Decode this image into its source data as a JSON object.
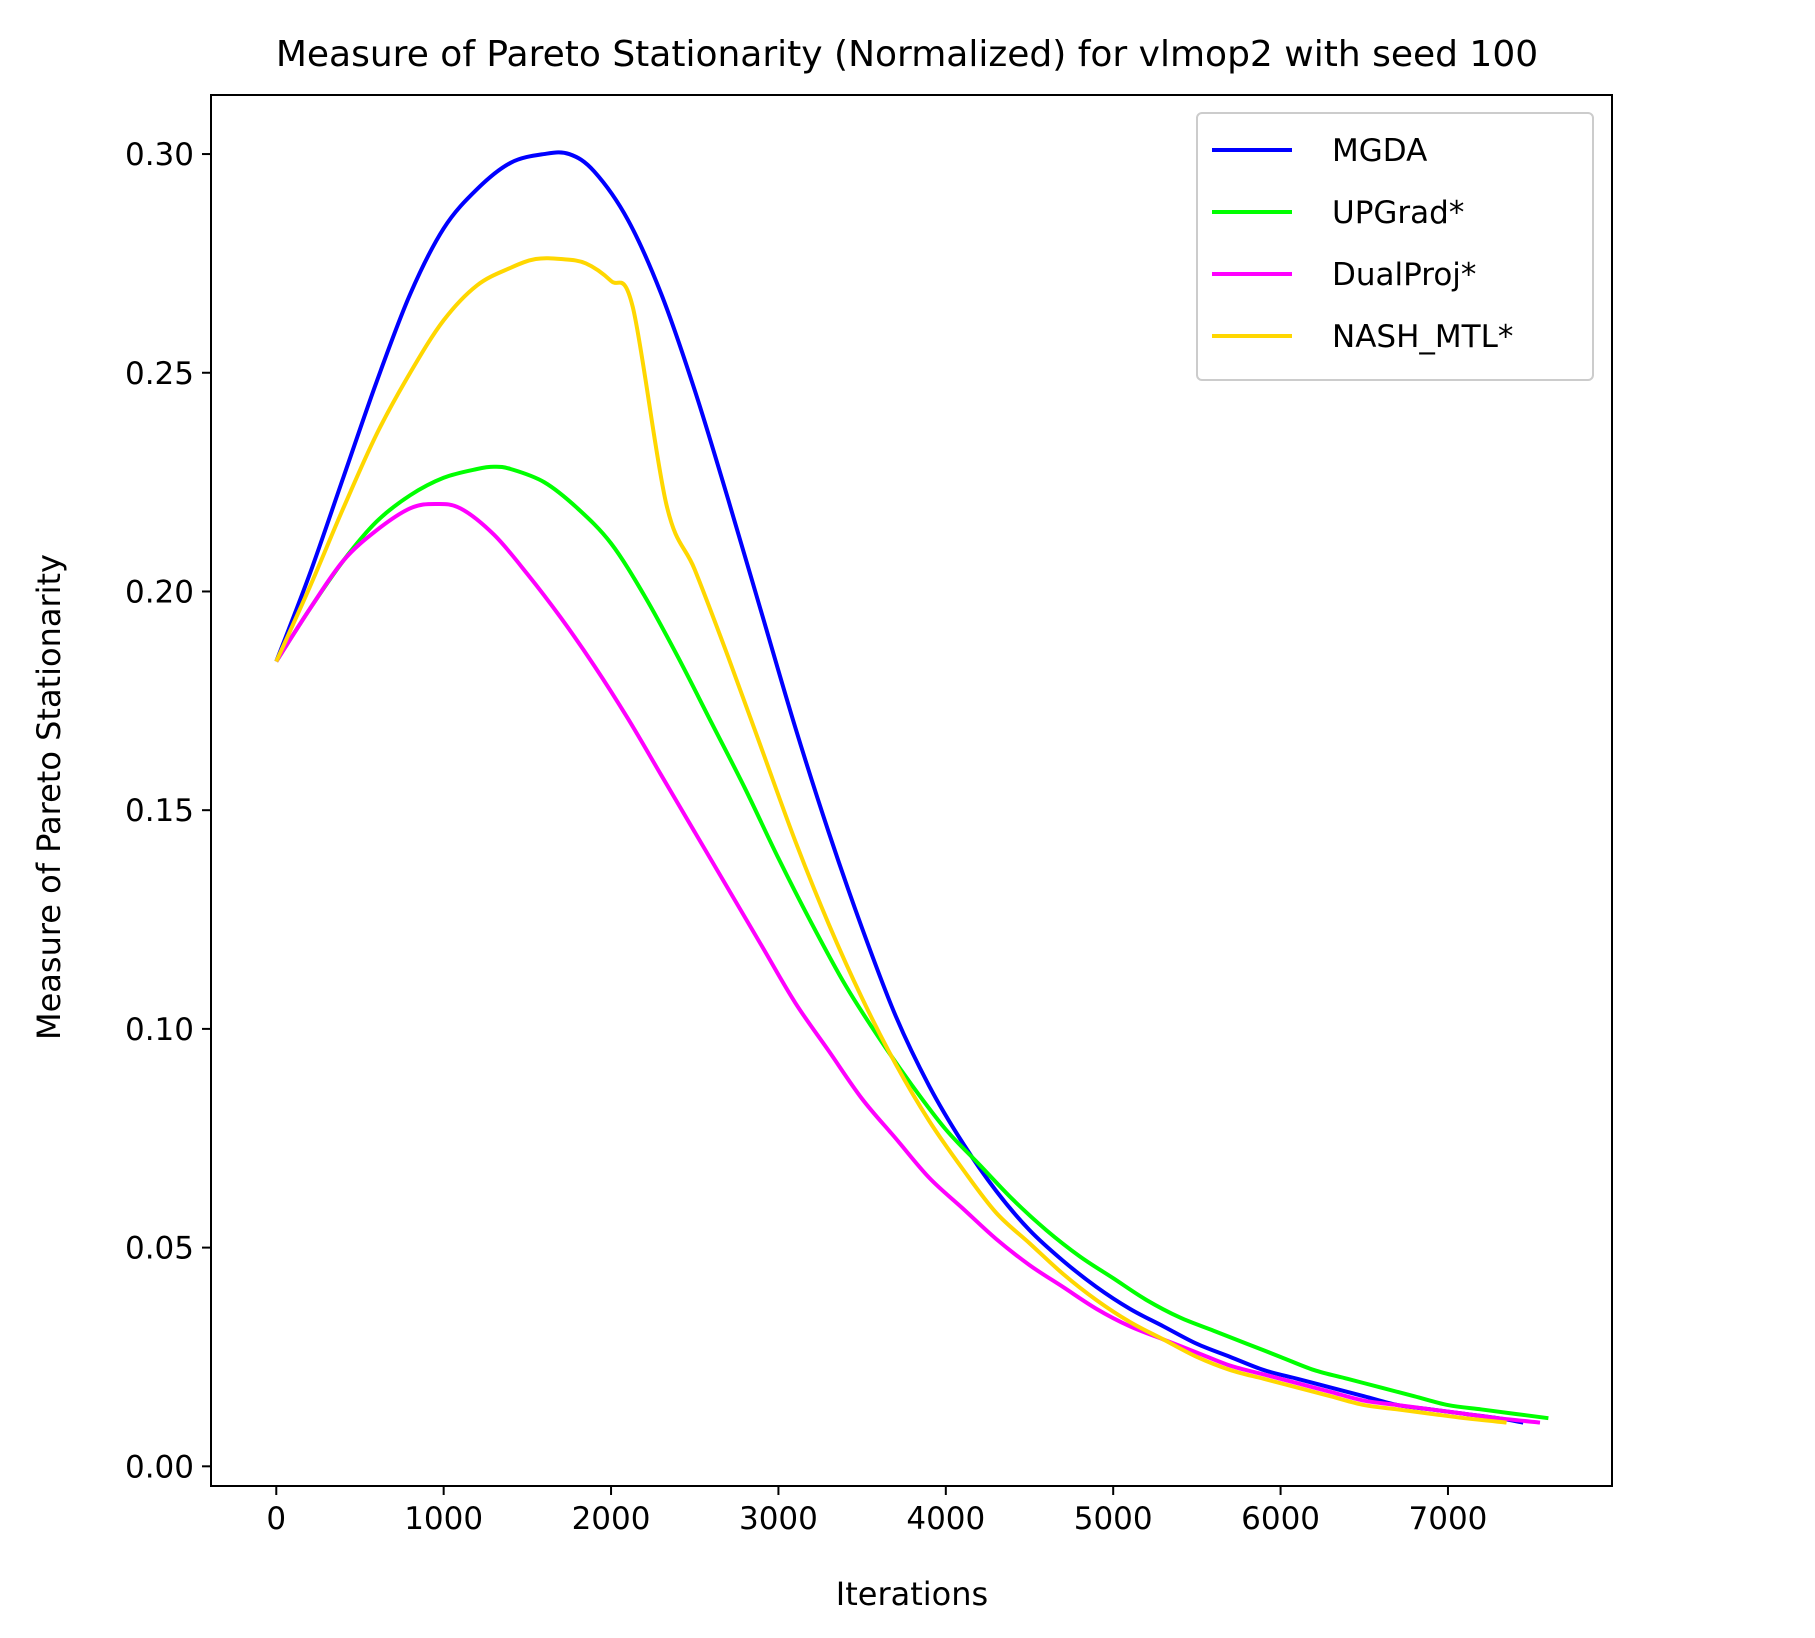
{
  "chart_data": {
    "type": "line",
    "title": "Measure of Pareto Stationarity (Normalized) for vlmop2 with seed 100",
    "xlabel": "Iterations",
    "ylabel": "Measure of Pareto Stationarity",
    "xlim": [
      -390,
      7980
    ],
    "ylim": [
      -0.0045,
      0.3135
    ],
    "xticks": [
      0,
      1000,
      2000,
      3000,
      4000,
      5000,
      6000,
      7000
    ],
    "xtick_labels": [
      "0",
      "1000",
      "2000",
      "3000",
      "4000",
      "5000",
      "6000",
      "7000"
    ],
    "yticks": [
      0.0,
      0.05,
      0.1,
      0.15,
      0.2,
      0.25,
      0.3
    ],
    "ytick_labels": [
      "0.00",
      "0.05",
      "0.10",
      "0.15",
      "0.20",
      "0.25",
      "0.30"
    ],
    "grid": false,
    "legend_position": "top-right",
    "series": [
      {
        "name": "MGDA",
        "color": "#0000ff",
        "x": [
          0,
          200,
          400,
          600,
          800,
          1000,
          1200,
          1400,
          1600,
          1750,
          1900,
          2100,
          2300,
          2500,
          2700,
          2900,
          3100,
          3300,
          3500,
          3700,
          3900,
          4100,
          4300,
          4500,
          4700,
          4900,
          5100,
          5300,
          5500,
          5700,
          5900,
          6100,
          6300,
          6500,
          6700,
          6900,
          7100,
          7300,
          7450
        ],
        "y": [
          0.184,
          0.204,
          0.226,
          0.248,
          0.268,
          0.283,
          0.292,
          0.298,
          0.3,
          0.3,
          0.296,
          0.285,
          0.268,
          0.246,
          0.221,
          0.195,
          0.169,
          0.145,
          0.123,
          0.103,
          0.087,
          0.074,
          0.063,
          0.054,
          0.047,
          0.041,
          0.036,
          0.032,
          0.028,
          0.025,
          0.022,
          0.02,
          0.018,
          0.016,
          0.014,
          0.013,
          0.012,
          0.011,
          0.01
        ]
      },
      {
        "name": "UPGrad*",
        "color": "#00ff00",
        "x": [
          0,
          200,
          400,
          600,
          800,
          1000,
          1200,
          1300,
          1400,
          1600,
          1800,
          2000,
          2200,
          2400,
          2600,
          2800,
          3000,
          3200,
          3400,
          3600,
          3800,
          4000,
          4200,
          4400,
          4600,
          4800,
          5000,
          5200,
          5400,
          5600,
          5800,
          6000,
          6200,
          6400,
          6600,
          6800,
          7000,
          7200,
          7400,
          7600
        ],
        "y": [
          0.184,
          0.196,
          0.207,
          0.216,
          0.222,
          0.226,
          0.228,
          0.2285,
          0.228,
          0.225,
          0.219,
          0.211,
          0.199,
          0.185,
          0.17,
          0.155,
          0.139,
          0.124,
          0.11,
          0.098,
          0.087,
          0.077,
          0.069,
          0.061,
          0.054,
          0.048,
          0.043,
          0.038,
          0.034,
          0.031,
          0.028,
          0.025,
          0.022,
          0.02,
          0.018,
          0.016,
          0.014,
          0.013,
          0.012,
          0.011
        ]
      },
      {
        "name": "DualProj*",
        "color": "#ff00ff",
        "x": [
          0,
          200,
          400,
          600,
          800,
          950,
          1100,
          1300,
          1500,
          1700,
          1900,
          2100,
          2300,
          2500,
          2700,
          2900,
          3100,
          3300,
          3500,
          3700,
          3900,
          4100,
          4300,
          4500,
          4700,
          4900,
          5100,
          5300,
          5500,
          5700,
          5900,
          6100,
          6300,
          6500,
          6700,
          6900,
          7100,
          7300,
          7550
        ],
        "y": [
          0.184,
          0.196,
          0.207,
          0.214,
          0.219,
          0.22,
          0.219,
          0.213,
          0.204,
          0.194,
          0.183,
          0.171,
          0.158,
          0.145,
          0.132,
          0.119,
          0.106,
          0.095,
          0.084,
          0.075,
          0.066,
          0.059,
          0.052,
          0.046,
          0.041,
          0.036,
          0.032,
          0.029,
          0.026,
          0.023,
          0.021,
          0.019,
          0.017,
          0.015,
          0.014,
          0.013,
          0.012,
          0.011,
          0.01
        ]
      },
      {
        "name": "NASH_MTL*",
        "color": "#ffd700",
        "x": [
          0,
          200,
          400,
          600,
          800,
          1000,
          1200,
          1400,
          1550,
          1700,
          1850,
          2000,
          2130,
          2330,
          2500,
          2700,
          2900,
          3100,
          3300,
          3500,
          3700,
          3900,
          4100,
          4300,
          4500,
          4700,
          4900,
          5100,
          5300,
          5500,
          5700,
          5900,
          6100,
          6300,
          6500,
          6700,
          6900,
          7100,
          7350
        ],
        "y": [
          0.184,
          0.201,
          0.219,
          0.236,
          0.25,
          0.262,
          0.27,
          0.274,
          0.276,
          0.276,
          0.275,
          0.271,
          0.265,
          0.22,
          0.205,
          0.185,
          0.164,
          0.143,
          0.124,
          0.107,
          0.092,
          0.079,
          0.068,
          0.058,
          0.051,
          0.044,
          0.038,
          0.033,
          0.029,
          0.025,
          0.022,
          0.02,
          0.018,
          0.016,
          0.014,
          0.013,
          0.012,
          0.011,
          0.01
        ]
      }
    ]
  }
}
